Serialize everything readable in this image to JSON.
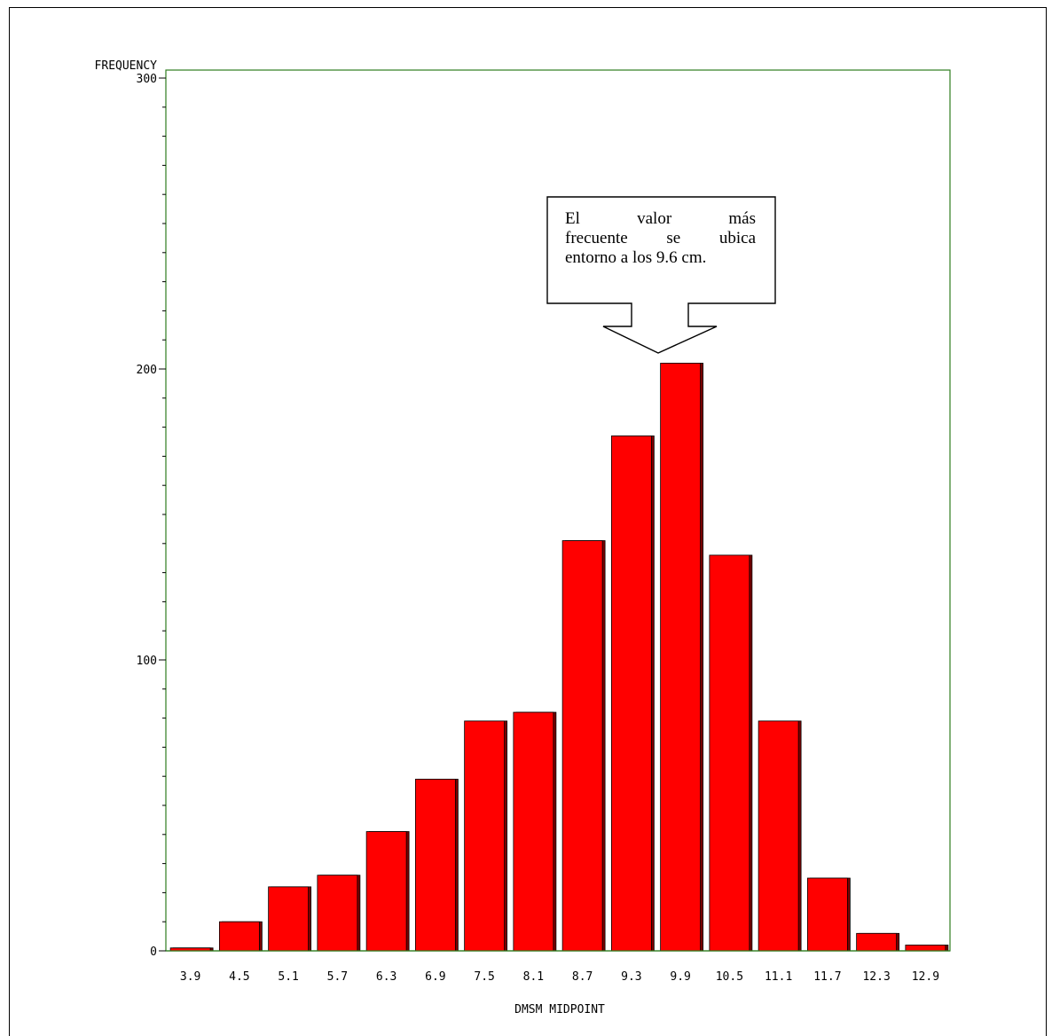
{
  "chart_data": {
    "type": "bar",
    "categories": [
      "3.9",
      "4.5",
      "5.1",
      "5.7",
      "6.3",
      "6.9",
      "7.5",
      "8.1",
      "8.7",
      "9.3",
      "9.9",
      "10.5",
      "11.1",
      "11.7",
      "12.3",
      "12.9"
    ],
    "values": [
      1,
      10,
      22,
      26,
      41,
      59,
      79,
      82,
      141,
      177,
      202,
      136,
      79,
      25,
      6,
      2
    ],
    "xlabel": "DMSM MIDPOINT",
    "ylabel": "FREQUENCY",
    "yticks": [
      "0",
      "100",
      "200",
      "300"
    ],
    "ylim": [
      0,
      300
    ],
    "colors": {
      "bar": "#ff0000",
      "bar_shadow": "#7a0000",
      "frame": "#2e7d1f"
    }
  },
  "annotation": {
    "line1": "El valor más",
    "line2": "frecuente se ubica",
    "line3": "entorno a los 9.6 cm."
  }
}
